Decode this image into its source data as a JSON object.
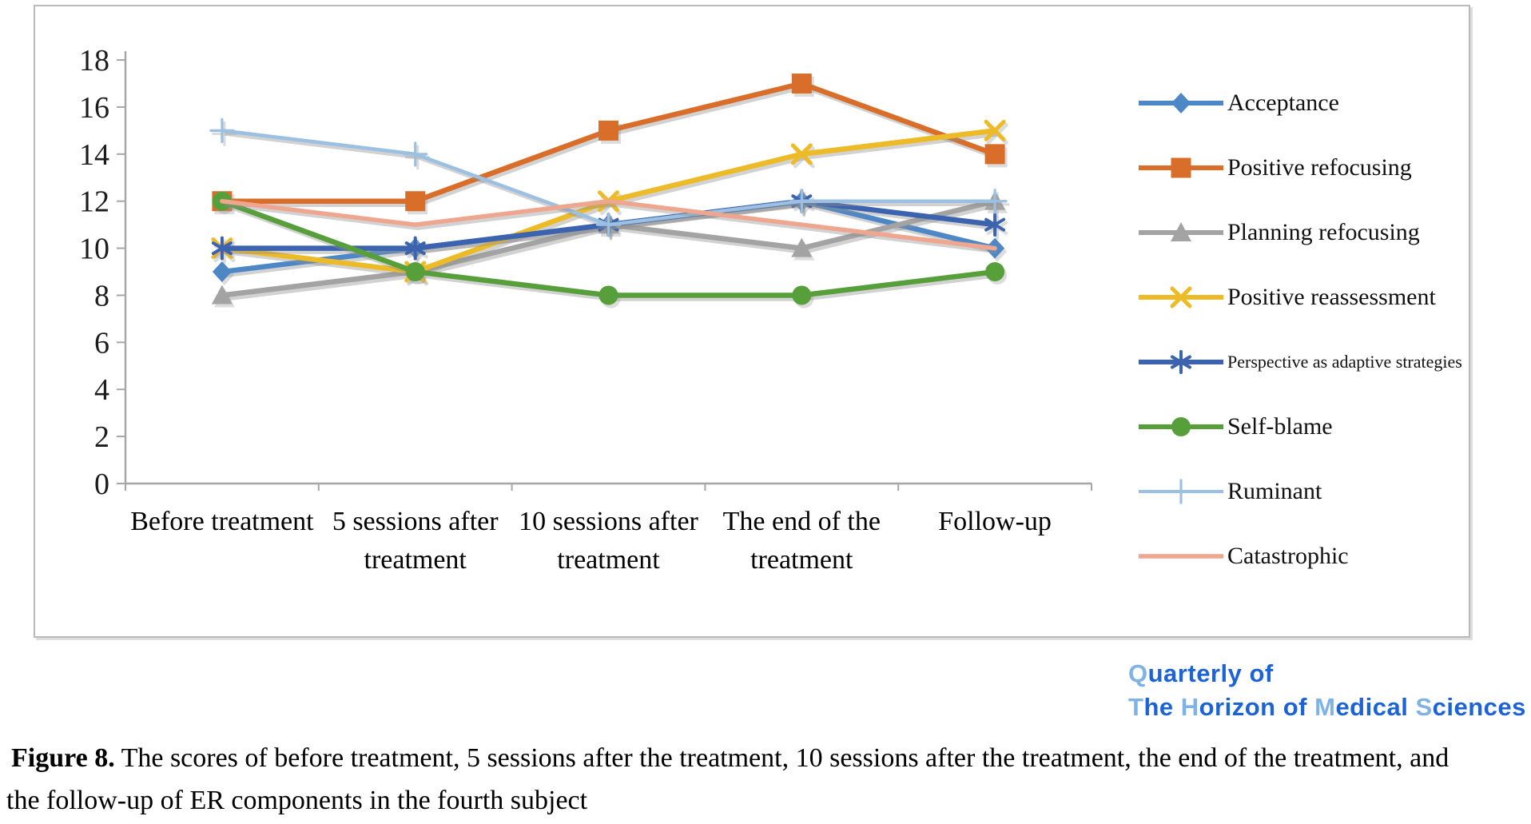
{
  "chart_data": {
    "type": "line",
    "title": "",
    "xlabel": "",
    "ylabel": "",
    "ylim": [
      0,
      18
    ],
    "ytick_step": 2,
    "ytick_labels": [
      "0",
      "2",
      "4",
      "6",
      "8",
      "10",
      "12",
      "14",
      "16",
      "18"
    ],
    "grid": false,
    "legend_position": "right",
    "categories": [
      "Before treatment",
      "5 sessions after treatment",
      "10 sessions after treatment",
      "The end of the treatment",
      "Follow-up"
    ],
    "category_label_lines": [
      [
        "Before treatment"
      ],
      [
        "5 sessions after",
        "treatment"
      ],
      [
        "10 sessions after",
        "treatment"
      ],
      [
        "The end of the",
        "treatment"
      ],
      [
        "Follow-up"
      ]
    ],
    "series": [
      {
        "name": "Acceptance",
        "marker": "diamond",
        "color": "#4E87C6",
        "values": [
          9,
          10,
          11,
          12,
          10
        ]
      },
      {
        "name": "Positive refocusing",
        "marker": "square",
        "color": "#D96E2A",
        "values": [
          12,
          12,
          15,
          17,
          14
        ]
      },
      {
        "name": "Planning refocusing",
        "marker": "triangle",
        "color": "#A3A3A3",
        "values": [
          8,
          9,
          11,
          10,
          12
        ]
      },
      {
        "name": "Positive reassessment",
        "marker": "x",
        "color": "#EDBB27",
        "values": [
          10,
          9,
          12,
          14,
          15
        ]
      },
      {
        "name": "Perspective as adaptive strategies",
        "marker": "asterisk",
        "color": "#3C63AE",
        "values": [
          10,
          10,
          11,
          12,
          11
        ]
      },
      {
        "name": "Self-blame",
        "marker": "circle",
        "color": "#579F3B",
        "values": [
          12,
          9,
          8,
          8,
          9
        ]
      },
      {
        "name": "Ruminant",
        "marker": "plus",
        "color": "#9BC0E2",
        "values": [
          15,
          14,
          11,
          12,
          12
        ]
      },
      {
        "name": "Catastrophic",
        "marker": "none",
        "color": "#EFA68E",
        "values": [
          12,
          11,
          12,
          11,
          10
        ]
      }
    ]
  },
  "branding": {
    "dark_color": "#1B63D7",
    "light_color": "#7FB2E5",
    "line1_parts": [
      {
        "t": "Q",
        "light": true
      },
      {
        "t": "uarterly of",
        "light": false
      }
    ],
    "line2_parts": [
      {
        "t": "T",
        "light": true
      },
      {
        "t": "he ",
        "light": false
      },
      {
        "t": "H",
        "light": true
      },
      {
        "t": "orizon of ",
        "light": false
      },
      {
        "t": "M",
        "light": true
      },
      {
        "t": "edical ",
        "light": false
      },
      {
        "t": "S",
        "light": true
      },
      {
        "t": "ciences",
        "light": false
      }
    ]
  },
  "caption": {
    "label": "Figure 8.",
    "line1_rest": " The scores of before treatment, 5 sessions after the treatment, 10 sessions after the treatment, the end of the treatment, and",
    "line2": "the follow-up of ER components in the fourth subject"
  }
}
